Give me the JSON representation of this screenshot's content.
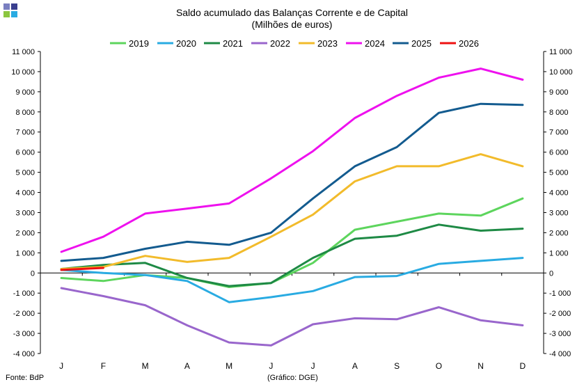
{
  "logo": {
    "colors": [
      "#7a7fc0",
      "#3a3f8f",
      "#8cc63f",
      "#29abe2"
    ]
  },
  "header": {
    "title": "Saldo acumulado  das Balanças Corrente e de Capital",
    "subtitle": "(Milhões de euros)"
  },
  "footer": {
    "source": "Fonte:  BdP",
    "credit": "(Gráfico: DGE)"
  },
  "chart_data": {
    "type": "line",
    "categories": [
      "J",
      "F",
      "M",
      "A",
      "M",
      "J",
      "J",
      "A",
      "S",
      "O",
      "N",
      "D"
    ],
    "ylim": [
      -4000,
      11000
    ],
    "yticks": [
      -4000,
      -3000,
      -2000,
      -1000,
      0,
      1000,
      2000,
      3000,
      4000,
      5000,
      6000,
      7000,
      8000,
      9000,
      10000,
      11000
    ],
    "ytick_labels": [
      "-4 000",
      "-3 000",
      "-2 000",
      "-1 000",
      "0",
      "1 000",
      "2 000",
      "3 000",
      "4 000",
      "5 000",
      "6 000",
      "7 000",
      "8 000",
      "9 000",
      "10 000",
      "11 000"
    ],
    "legend_position": "top",
    "grid": false,
    "series": [
      {
        "name": "2019",
        "color": "#5dd55d",
        "values": [
          -250,
          -400,
          -100,
          -250,
          -700,
          -500,
          500,
          2150,
          2550,
          2950,
          2850,
          3700
        ]
      },
      {
        "name": "2020",
        "color": "#29abe2",
        "values": [
          150,
          0,
          -100,
          -400,
          -1450,
          -1200,
          -900,
          -200,
          -150,
          450,
          600,
          750
        ]
      },
      {
        "name": "2021",
        "color": "#1e8a45",
        "values": [
          200,
          400,
          500,
          -250,
          -650,
          -500,
          750,
          1700,
          1850,
          2400,
          2100,
          2200
        ]
      },
      {
        "name": "2022",
        "color": "#9966cc",
        "values": [
          -750,
          -1150,
          -1600,
          -2600,
          -3450,
          -3600,
          -2550,
          -2250,
          -2300,
          -1700,
          -2350,
          -2600
        ]
      },
      {
        "name": "2023",
        "color": "#f2bb2b",
        "values": [
          200,
          300,
          850,
          550,
          750,
          1800,
          2900,
          4550,
          5300,
          5300,
          5900,
          5300
        ]
      },
      {
        "name": "2024",
        "color": "#ee11ee",
        "values": [
          1050,
          1800,
          2950,
          3200,
          3450,
          4700,
          6050,
          7700,
          8800,
          9700,
          10150,
          9600
        ]
      },
      {
        "name": "2025",
        "color": "#135b8f",
        "values": [
          600,
          750,
          1200,
          1550,
          1400,
          2000,
          3700,
          5300,
          6250,
          7950,
          8400,
          8350
        ]
      },
      {
        "name": "2026",
        "color": "#ee1111",
        "values": [
          150,
          250,
          null,
          null,
          null,
          null,
          null,
          null,
          null,
          null,
          null,
          null
        ]
      }
    ]
  }
}
